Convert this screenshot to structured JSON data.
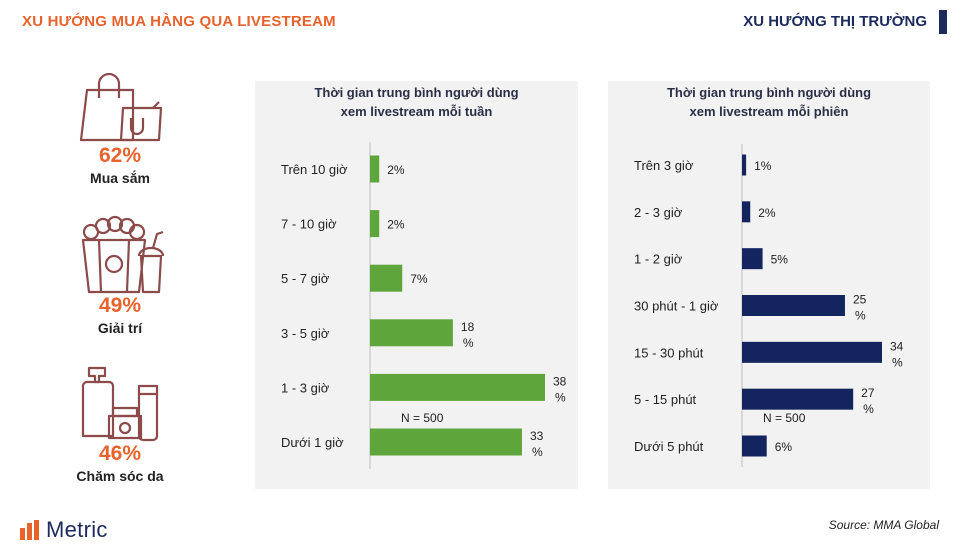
{
  "header": {
    "left_title": "XU HƯỚNG MUA HÀNG QUA LIVESTREAM",
    "right_title": "XU HƯỚNG THỊ TRƯỜNG"
  },
  "stats": [
    {
      "value": "62%",
      "label": "Mua sắm",
      "icon": "shopping-bags-icon"
    },
    {
      "value": "49%",
      "label": "Giải trí",
      "icon": "popcorn-drink-icon"
    },
    {
      "value": "46%",
      "label": "Chăm sóc da",
      "icon": "skincare-bottles-icon"
    }
  ],
  "chart_data": [
    {
      "type": "bar",
      "orientation": "horizontal",
      "title_line1": "Thời gian trung bình người dùng",
      "title_line2": "xem livestream mỗi tuần",
      "categories": [
        "Trên 10 giờ",
        "7 - 10 giờ",
        "5 - 7 giờ",
        "3 - 5 giờ",
        "1 - 3 giờ",
        "Dưới 1 giờ"
      ],
      "values": [
        2,
        2,
        7,
        18,
        38,
        33
      ],
      "unit": "%",
      "color": "#5ea63b",
      "annotation": "N = 500"
    },
    {
      "type": "bar",
      "orientation": "horizontal",
      "title_line1": "Thời gian trung bình người dùng",
      "title_line2": "xem livestream mỗi phiên",
      "categories": [
        "Trên 3 giờ",
        "2 - 3 giờ",
        "1 - 2 giờ",
        "30 phút - 1 giờ",
        "15 - 30 phút",
        "5 - 15 phút",
        "Dưới 5 phút"
      ],
      "values": [
        1,
        2,
        5,
        25,
        34,
        27,
        6
      ],
      "unit": "%",
      "color": "#14245e",
      "annotation": "N = 500"
    }
  ],
  "footer": {
    "brand": "Metric",
    "source": "Source: MMA Global"
  },
  "colors": {
    "accent": "#e8622c",
    "navy": "#1e2a5e",
    "icon": "#8c4a4a"
  }
}
